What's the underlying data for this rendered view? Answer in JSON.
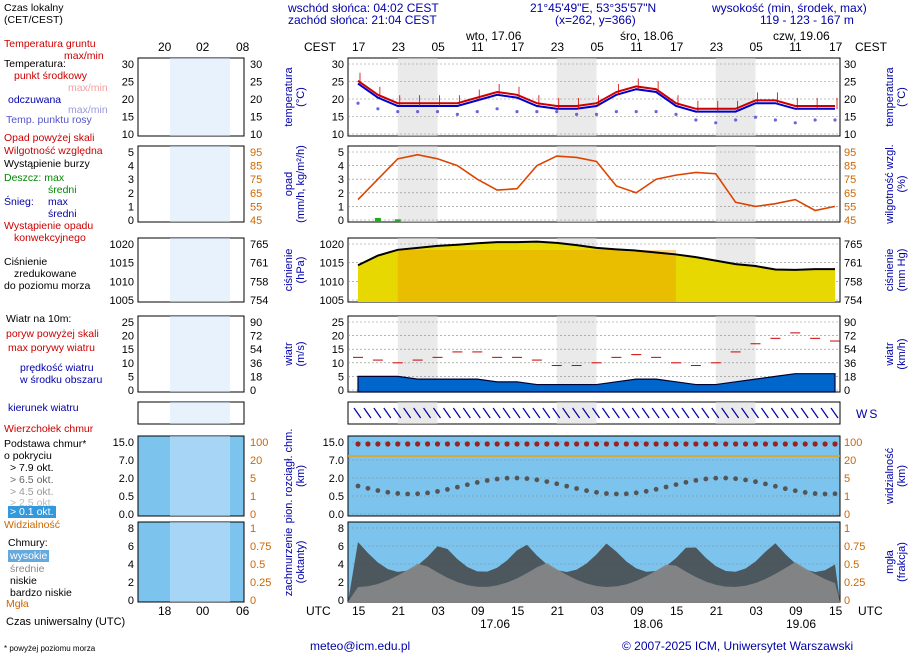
{
  "header": {
    "sunrise": "wschód słońca: 04:02 CEST",
    "sunset": "zachód słońca: 21:04 CEST",
    "coords": "21°45'49\"E, 53°35'57\"N",
    "grid": "(x=262, y=366)",
    "elev_title": "wysokość (min, środek, max)",
    "elev_values": "119 - 123 - 167 m"
  },
  "timeline": {
    "cest_label": "CEST",
    "utc_label": "UTC",
    "day_labels": [
      "wto, 17.06",
      "śro, 18.06",
      "czw, 19.06"
    ],
    "cest_ticks": [
      "17",
      "23",
      "05",
      "11",
      "17",
      "23",
      "05",
      "11",
      "17",
      "23",
      "05",
      "11",
      "17"
    ],
    "utc_ticks": [
      "15",
      "21",
      "03",
      "09",
      "15",
      "21",
      "03",
      "09",
      "15",
      "21",
      "03",
      "09",
      "15"
    ],
    "utc_dates": [
      "17.06",
      "18.06",
      "19.06"
    ]
  },
  "legend": {
    "local_time": "Czas lokalny",
    "local_time2": "(CET/CEST)",
    "mini_ticks_top": [
      "20",
      "02",
      "08"
    ],
    "mini_ticks_bottom": [
      "18",
      "00",
      "06"
    ],
    "ground_temp": "Temperatura gruntu",
    "ground_temp2": "max/min",
    "temp_title": "Temperatura:",
    "temp_mid": "punkt środkowy",
    "temp_minmax": "max/min",
    "temp_feels": "odczuwana",
    "temp_minmax2": "max/min",
    "temp_dew": "Temp. punktu rosy",
    "precip_over": "Opad powyżej skali",
    "humidity": "Wilgotność względna",
    "storm": "Wystąpienie burzy",
    "rain": "Deszcz: max",
    "rain_mid": "średni",
    "snow": "Śnieg:",
    "snow_max": "max",
    "snow_mid": "średni",
    "conv": "Wystąpienie opadu",
    "conv2": "konwekcyjnego",
    "pressure": "Ciśnienie",
    "pressure2": "zredukowane",
    "pressure3": "do poziomu morza",
    "wind_title": "Wiatr na 10m:",
    "gust_over": "poryw powyżej skali",
    "gust_max": "max porywy wiatru",
    "wind_mean": "prędkość wiatru",
    "wind_mean2": "w środku obszaru",
    "wind_dir": "kierunek wiatru",
    "cloud_top": "Wierzchołek chmur",
    "cloud_base": "Podstawa chmur*",
    "cloud_base2": "o pokryciu",
    "okt1": "> 7.9 okt.",
    "okt2": "> 6.5 okt.",
    "okt3": "> 4.5 okt.",
    "okt4": "> 2.5 okt.",
    "okt5": "> 0.1 okt.",
    "visibility": "Widzialność",
    "clouds": "Chmury:",
    "cl_high": "wysokie",
    "cl_mid": "średnie",
    "cl_low": "niskie",
    "cl_vlow": "bardzo niskie",
    "fog": "Mgła",
    "utc_time": "Czas uniwersalny (UTC)",
    "footnote": "* powyżej poziomu morza"
  },
  "axis_labels": {
    "temp_l": "temperatura",
    "temp_l2": "(°C)",
    "temp_r": "temperatura",
    "temp_r2": "(°C)",
    "precip_l": "opad",
    "precip_l2": "(mm/h, kg/m²/h)",
    "hum_r": "wilgotność wzgl.",
    "hum_r2": "(%)",
    "pres_l": "ciśnienie",
    "pres_l2": "(hPa)",
    "pres_r": "ciśnienie",
    "pres_r2": "(mm Hg)",
    "wind_l": "wiatr",
    "wind_l2": "(m/s)",
    "wind_r": "wiatr",
    "wind_r2": "(km/h)",
    "cloud_l": "pion. rozciągł. chm.",
    "cloud_l2": "(km)",
    "vis_r": "widzialność",
    "vis_r2": "(km)",
    "cov_l": "zachmurzenie",
    "cov_l2": "(oktanty)",
    "fog_r": "mgła",
    "fog_r2": "(frakcja)"
  },
  "footer": {
    "email": "meteo@icm.edu.pl",
    "copyright": "© 2007-2025 ICM, Uniwersytet Warszawski"
  },
  "chart_data": [
    {
      "type": "line",
      "name": "temperature",
      "ylim": [
        -10,
        30
      ],
      "y_ticks": [
        "30",
        "25",
        "20",
        "15",
        "10"
      ],
      "hours": [
        0,
        3,
        6,
        9,
        12,
        15,
        18,
        21,
        24,
        27,
        30,
        33,
        36,
        39,
        42,
        45,
        48,
        51,
        54,
        57,
        60,
        63,
        66,
        69,
        72
      ],
      "series": [
        {
          "name": "punkt środkowy",
          "color": "#cc0000",
          "values": [
            24,
            19,
            16,
            16,
            16,
            16,
            18,
            20,
            19,
            16,
            15,
            15,
            16,
            20,
            22,
            21,
            16,
            14,
            14,
            14,
            17,
            17,
            15,
            15,
            15
          ]
        },
        {
          "name": "odczuwana",
          "color": "#0000cc",
          "values": [
            23,
            18,
            15,
            15,
            15,
            15,
            17,
            19,
            18,
            15,
            14,
            14,
            15,
            19,
            21,
            20,
            15,
            13,
            13,
            13,
            16,
            16,
            14,
            14,
            14
          ]
        },
        {
          "name": "Temp. punktu rosy",
          "color": "#6666dd",
          "values": [
            16,
            14,
            13,
            13,
            13,
            12,
            13,
            14,
            13,
            13,
            13,
            12,
            12,
            13,
            13,
            13,
            12,
            10,
            9,
            10,
            11,
            10,
            9,
            10,
            10
          ]
        }
      ]
    },
    {
      "type": "line",
      "name": "precipitation_humidity",
      "ylim": [
        0,
        5
      ],
      "y_ticks": [
        "5",
        "4",
        "3",
        "2",
        "1",
        "0"
      ],
      "y2lim": [
        45,
        95
      ],
      "y2_ticks": [
        "95",
        "85",
        "75",
        "65",
        "55",
        "45"
      ],
      "hours": [
        0,
        3,
        6,
        9,
        12,
        15,
        18,
        21,
        24,
        27,
        30,
        33,
        36,
        39,
        42,
        45,
        48,
        51,
        54,
        57,
        60,
        63,
        66,
        69,
        72
      ],
      "series": [
        {
          "name": "Wilgotność względna",
          "color": "#dd4400",
          "values": [
            60,
            75,
            90,
            93,
            90,
            85,
            75,
            67,
            68,
            85,
            92,
            91,
            88,
            70,
            65,
            75,
            78,
            80,
            79,
            58,
            55,
            57,
            60,
            52,
            55
          ]
        },
        {
          "name": "opad",
          "color": "#00aa00",
          "values": [
            0,
            0.3,
            0.2,
            0,
            0,
            0,
            0,
            0,
            0,
            0,
            0,
            0,
            0,
            0,
            0,
            0,
            0,
            0,
            0,
            0,
            0,
            0,
            0,
            0,
            0
          ]
        }
      ]
    },
    {
      "type": "area",
      "name": "pressure",
      "ylim": [
        1005,
        1020
      ],
      "y_ticks": [
        "1020",
        "1015",
        "1010",
        "1005"
      ],
      "y2_ticks": [
        "765",
        "761",
        "758",
        "754"
      ],
      "hours": [
        0,
        3,
        6,
        9,
        12,
        15,
        18,
        21,
        24,
        27,
        30,
        33,
        36,
        39,
        42,
        45,
        48,
        51,
        54,
        57,
        60,
        63,
        66,
        69,
        72
      ],
      "series": [
        {
          "name": "Ciśnienie",
          "color": "#000000",
          "values": [
            1014.5,
            1017,
            1018.5,
            1019,
            1019.5,
            1019.8,
            1020.2,
            1020.5,
            1020.5,
            1020.6,
            1020.3,
            1019.7,
            1019,
            1018.6,
            1018.3,
            1017.8,
            1017.3,
            1016.6,
            1015.7,
            1014.8,
            1014.3,
            1013.4,
            1013.3,
            1013.5,
            1013.5
          ]
        }
      ]
    },
    {
      "type": "line",
      "name": "wind",
      "ylim": [
        0,
        25
      ],
      "y_ticks": [
        "25",
        "20",
        "15",
        "10",
        "5",
        "0"
      ],
      "y2_ticks": [
        "90",
        "72",
        "54",
        "36",
        "18",
        "0"
      ],
      "hours": [
        0,
        3,
        6,
        9,
        12,
        15,
        18,
        21,
        24,
        27,
        30,
        33,
        36,
        39,
        42,
        45,
        48,
        51,
        54,
        57,
        60,
        63,
        66,
        69,
        72
      ],
      "series": [
        {
          "name": "max porywy wiatru",
          "color": "#cc0000",
          "values": [
            12,
            11,
            10,
            11,
            12,
            14,
            14,
            12,
            12,
            11,
            9,
            9,
            10,
            12,
            13,
            12,
            10,
            9,
            10,
            14,
            17,
            19,
            21,
            19,
            18
          ]
        },
        {
          "name": "prędkość wiatru",
          "color": "#0000cc",
          "values": [
            5,
            5,
            5,
            4,
            4,
            4,
            4,
            3,
            3,
            2,
            2,
            2,
            2,
            3,
            4,
            4,
            3,
            2,
            2,
            3,
            4,
            5,
            6,
            6,
            6
          ]
        }
      ]
    },
    {
      "type": "scatter",
      "name": "cloud_base_visibility",
      "ylim": [
        0,
        15
      ],
      "y_ticks": [
        "15.0",
        "7.0",
        "2.0",
        "0.5",
        "0.0"
      ],
      "y2_ticks": [
        "100",
        "20",
        "5",
        "1",
        "0"
      ]
    },
    {
      "type": "area",
      "name": "cloud_cover",
      "ylim": [
        0,
        8
      ],
      "y_ticks": [
        "8",
        "6",
        "4",
        "2",
        "0"
      ],
      "y2_ticks": [
        "1",
        "0.75",
        "0.5",
        "0.25",
        "0"
      ]
    }
  ],
  "colors": {
    "panel_bg": "#e8f2fa",
    "night": "#d9d9d9",
    "temp_mid": "#cc0000",
    "temp_feels": "#0000cc",
    "dew": "#7777dd",
    "humidity": "#dd4400",
    "precip": "#22aa22",
    "pressure_fill": "#e6d800",
    "pressure_warm": "#f0a000",
    "wind_fill": "#0066cc",
    "wind_green": "#229922",
    "sky": "#7cc4ee",
    "cloud_dark": "#444444",
    "cloud_mid": "#888888",
    "visibility": "#f0a000"
  }
}
